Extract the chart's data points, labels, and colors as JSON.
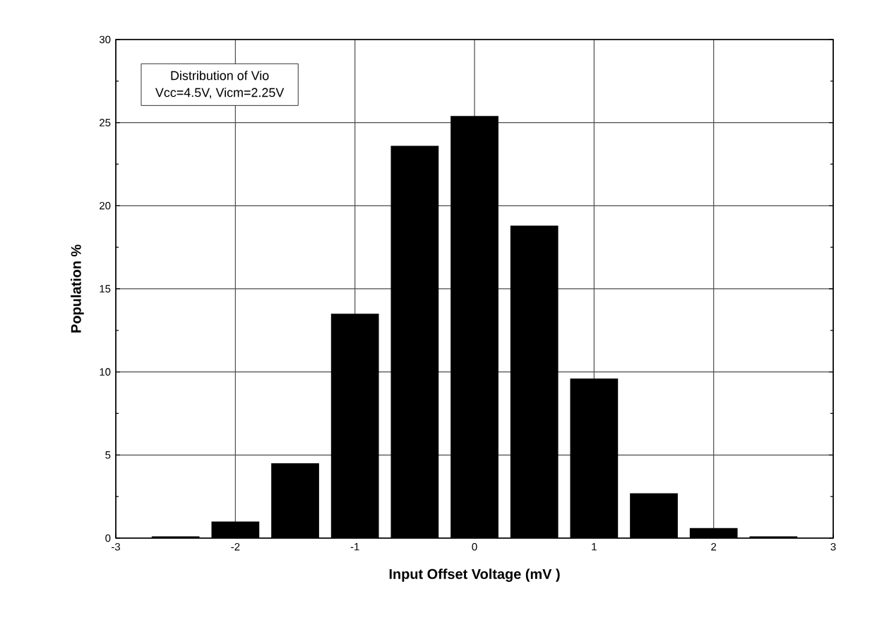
{
  "chart_data": {
    "type": "histogram",
    "xlabel": "Input Offset Voltage   (mV )",
    "ylabel": "Population %",
    "annotations": [
      "Distribution of Vio",
      "Vcc=4.5V, Vicm=2.25V"
    ],
    "bins": [
      -2.75,
      -2.25,
      -1.75,
      -1.25,
      -0.75,
      -0.25,
      0.25,
      0.75,
      1.25,
      1.75,
      2.25,
      2.75
    ],
    "values": [
      0.1,
      1.0,
      4.5,
      13.5,
      23.6,
      25.4,
      18.8,
      9.6,
      2.7,
      0.6,
      0.1
    ],
    "color": "#000000",
    "xlim": [
      -3,
      3
    ],
    "xticks": [
      -3,
      -2,
      -1,
      0,
      1,
      2,
      3
    ],
    "ylim": [
      0,
      30
    ],
    "yticks": [
      0,
      5,
      10,
      15,
      20,
      25,
      30
    ],
    "grid": true
  }
}
